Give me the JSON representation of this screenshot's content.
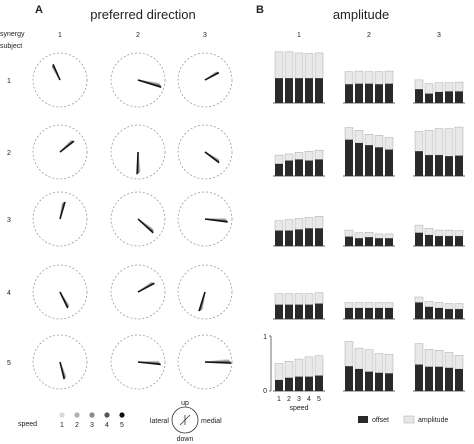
{
  "panels": {
    "a_letter": "A",
    "a_title": "preferred direction",
    "b_letter": "B",
    "b_title": "amplitude",
    "row_header_1": "synergy",
    "row_header_2": "subject"
  },
  "synergies": [
    "1",
    "2",
    "3"
  ],
  "subjects": [
    "1",
    "2",
    "3",
    "4",
    "5"
  ],
  "colors": {
    "offset": "#2a2a2a",
    "amplitude": "#e8e8e8",
    "circle": "#9a9a9a",
    "speed_shades": [
      "#d8d8d8",
      "#b0b0b0",
      "#888888",
      "#555555",
      "#111111"
    ]
  },
  "legend_speed": {
    "label": "speed",
    "items": [
      "1",
      "2",
      "3",
      "4",
      "5"
    ]
  },
  "compass": {
    "up": "up",
    "down": "down",
    "lateral": "lateral",
    "medial": "medial"
  },
  "legend_bars": {
    "offset": "offset",
    "amplitude": "amplitude"
  },
  "chart_data": [
    {
      "type": "polar-direction",
      "title": "preferred direction",
      "note": "angle in degrees, 0 = up, clockwise toward medial; length 0-1 relative to circle radius",
      "rows": [
        [
          {
            "angle": -28,
            "length": 0.6
          },
          {
            "angle": 103,
            "length": 0.85
          },
          {
            "angle": 58,
            "length": 0.55
          }
        ],
        [
          {
            "angle": 48,
            "length": 0.62
          },
          {
            "angle": 178,
            "length": 0.78
          },
          {
            "angle": 123,
            "length": 0.62
          }
        ],
        [
          {
            "angle": 12,
            "length": 0.62
          },
          {
            "angle": 128,
            "length": 0.72
          },
          {
            "angle": 93,
            "length": 0.8
          }
        ],
        [
          {
            "angle": 150,
            "length": 0.62
          },
          {
            "angle": 58,
            "length": 0.65
          },
          {
            "angle": 193,
            "length": 0.7
          }
        ],
        [
          {
            "angle": 162,
            "length": 0.62
          },
          {
            "angle": 92,
            "length": 0.8
          },
          {
            "angle": 88,
            "length": 0.92
          }
        ]
      ]
    },
    {
      "type": "bar",
      "title": "amplitude",
      "categories": [
        "1",
        "2",
        "3",
        "4",
        "5"
      ],
      "xlabel": "speed",
      "ylim": [
        0,
        1
      ],
      "yticks": [
        "0",
        "1"
      ],
      "series_names": [
        "offset",
        "amplitude"
      ],
      "rows": [
        [
          {
            "offset": [
              0.45,
              0.45,
              0.45,
              0.45,
              0.45
            ],
            "amplitude": [
              0.48,
              0.48,
              0.46,
              0.45,
              0.46
            ]
          },
          {
            "offset": [
              0.34,
              0.35,
              0.35,
              0.34,
              0.35
            ],
            "amplitude": [
              0.23,
              0.23,
              0.22,
              0.23,
              0.23
            ]
          },
          {
            "offset": [
              0.25,
              0.17,
              0.2,
              0.21,
              0.21
            ],
            "amplitude": [
              0.17,
              0.18,
              0.17,
              0.16,
              0.17
            ]
          }
        ],
        [
          {
            "offset": [
              0.22,
              0.28,
              0.3,
              0.28,
              0.3
            ],
            "amplitude": [
              0.16,
              0.12,
              0.13,
              0.17,
              0.17
            ]
          },
          {
            "offset": [
              0.66,
              0.6,
              0.56,
              0.52,
              0.48
            ],
            "amplitude": [
              0.22,
              0.23,
              0.2,
              0.22,
              0.22
            ]
          },
          {
            "offset": [
              0.45,
              0.38,
              0.38,
              0.36,
              0.37
            ],
            "amplitude": [
              0.36,
              0.45,
              0.48,
              0.5,
              0.52
            ]
          }
        ],
        [
          {
            "offset": [
              0.28,
              0.28,
              0.3,
              0.32,
              0.32
            ],
            "amplitude": [
              0.18,
              0.2,
              0.2,
              0.2,
              0.22
            ]
          },
          {
            "offset": [
              0.17,
              0.14,
              0.16,
              0.14,
              0.14
            ],
            "amplitude": [
              0.12,
              0.1,
              0.09,
              0.08,
              0.08
            ]
          },
          {
            "offset": [
              0.24,
              0.2,
              0.18,
              0.18,
              0.18
            ],
            "amplitude": [
              0.14,
              0.12,
              0.11,
              0.11,
              0.1
            ]
          }
        ],
        [
          {
            "offset": [
              0.26,
              0.26,
              0.26,
              0.26,
              0.28
            ],
            "amplitude": [
              0.2,
              0.2,
              0.2,
              0.2,
              0.2
            ]
          },
          {
            "offset": [
              0.2,
              0.2,
              0.2,
              0.2,
              0.2
            ],
            "amplitude": [
              0.1,
              0.1,
              0.1,
              0.1,
              0.1
            ]
          },
          {
            "offset": [
              0.3,
              0.22,
              0.2,
              0.18,
              0.18
            ],
            "amplitude": [
              0.1,
              0.1,
              0.1,
              0.1,
              0.1
            ]
          }
        ],
        [
          {
            "offset": [
              0.2,
              0.24,
              0.26,
              0.26,
              0.28
            ],
            "amplitude": [
              0.3,
              0.3,
              0.32,
              0.36,
              0.36
            ]
          },
          {
            "offset": [
              0.45,
              0.4,
              0.35,
              0.33,
              0.32
            ],
            "amplitude": [
              0.45,
              0.38,
              0.4,
              0.35,
              0.35
            ]
          },
          {
            "offset": [
              0.48,
              0.44,
              0.44,
              0.42,
              0.4
            ],
            "amplitude": [
              0.38,
              0.32,
              0.3,
              0.28,
              0.25
            ]
          }
        ]
      ]
    }
  ]
}
